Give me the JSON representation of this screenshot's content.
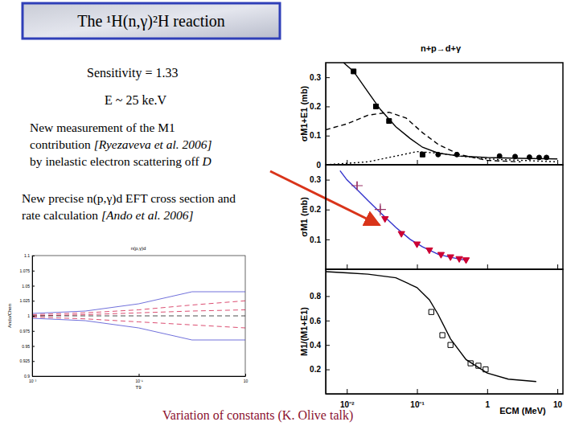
{
  "slide": {
    "title": "The ¹H(n,γ)²H reaction",
    "notes": [
      {
        "lines": [
          [
            "Sensitivity = 1.33"
          ]
        ]
      },
      {
        "lines": [
          [
            "E ~ 25 ke.V"
          ]
        ]
      },
      {
        "lines": [
          [
            "New measurement of the M1"
          ],
          [
            "contribution ",
            "[Ryezaveva et al. 2006]"
          ],
          [
            "by inelastic electron scattering off ",
            "D"
          ]
        ]
      },
      {
        "lines": [
          [
            "New precise n(p,γ)d EFT cross section and"
          ],
          [
            "rate calculation ",
            "[Ando et al. 2006]"
          ]
        ]
      }
    ],
    "footer": "Variation of constants (K. Olive talk)"
  },
  "chart_data": [
    {
      "type": "line",
      "title": "n+p→d+γ",
      "ylabel": "σM1+E1 (mb)",
      "log": "x",
      "tick_labels": "y",
      "xlim": [
        0.005,
        12
      ],
      "ylim": [
        0,
        0.35
      ],
      "xticks": [
        {
          "value": 0.01,
          "label": "10⁻²"
        },
        {
          "value": 0.1,
          "label": "10⁻¹"
        },
        1,
        10
      ],
      "yticks": [
        0,
        0.1,
        0.2,
        0.3
      ],
      "series": [
        {
          "type": "line",
          "line_style": "solid",
          "color": "#000000",
          "x": [
            0.009,
            0.0125,
            0.02,
            0.03,
            0.05,
            0.08,
            0.12,
            0.2,
            0.4,
            1,
            3,
            10
          ],
          "values": [
            0.35,
            0.32,
            0.25,
            0.19,
            0.13,
            0.09,
            0.06,
            0.04,
            0.03,
            0.025,
            0.022,
            0.02
          ]
        },
        {
          "type": "line",
          "line_style": "dashed",
          "color": "#000000",
          "x": [
            0.005,
            0.01,
            0.02,
            0.04,
            0.07,
            0.12,
            0.2,
            0.4,
            1,
            3
          ],
          "values": [
            0.12,
            0.14,
            0.17,
            0.18,
            0.16,
            0.11,
            0.07,
            0.035,
            0.015,
            0.01
          ]
        },
        {
          "type": "line",
          "line_style": "dotted",
          "color": "#000000",
          "x": [
            0.005,
            0.02,
            0.05,
            0.1,
            0.2,
            0.4,
            1,
            10
          ],
          "values": [
            0.0,
            0.01,
            0.03,
            0.045,
            0.04,
            0.03,
            0.02,
            0.01
          ]
        },
        {
          "type": "scatter",
          "marker": "square",
          "color": "#000000",
          "x": [
            0.0125,
            0.026,
            0.04,
            0.12
          ],
          "values": [
            0.32,
            0.2,
            0.15,
            0.035
          ]
        },
        {
          "type": "scatter",
          "marker": "circle",
          "color": "#000000",
          "x": [
            0.2,
            0.37,
            1.5,
            2.5,
            4,
            5.5,
            7
          ],
          "values": [
            0.035,
            0.035,
            0.03,
            0.028,
            0.026,
            0.025,
            0.025
          ]
        }
      ]
    },
    {
      "type": "line",
      "ylabel": "σM1 (mb)",
      "log": "x",
      "tick_labels": "y",
      "xlim": [
        0.005,
        12
      ],
      "ylim": [
        0,
        0.35
      ],
      "xticks": [
        {
          "value": 0.01,
          "label": "10⁻²"
        },
        {
          "value": 0.1,
          "label": "10⁻¹"
        },
        1,
        10
      ],
      "yticks": [
        0.1,
        0.2,
        0.3
      ],
      "series": [
        {
          "type": "line",
          "line_style": "solid",
          "color": "#3333cc",
          "x": [
            0.008,
            0.01,
            0.015,
            0.02,
            0.03,
            0.05,
            0.08,
            0.12,
            0.2,
            0.3,
            0.5
          ],
          "values": [
            0.33,
            0.3,
            0.26,
            0.23,
            0.19,
            0.14,
            0.1,
            0.075,
            0.05,
            0.04,
            0.03
          ]
        },
        {
          "type": "scatter",
          "marker": "plus",
          "color": "#993366",
          "x": [
            0.014,
            0.03
          ],
          "values": [
            0.28,
            0.2
          ],
          "error": [
            0.015,
            0.02
          ]
        },
        {
          "type": "scatter",
          "marker": "triangle-down",
          "color": "#cc0033",
          "x": [
            0.035,
            0.06,
            0.1,
            0.15,
            0.22,
            0.3,
            0.4,
            0.5
          ],
          "values": [
            0.17,
            0.12,
            0.085,
            0.065,
            0.05,
            0.042,
            0.036,
            0.032
          ]
        }
      ]
    },
    {
      "type": "line",
      "ylabel": "M1/(M1+E1)",
      "xlabel": "ECM (MeV)",
      "log": "x",
      "xlim": [
        0.005,
        12
      ],
      "ylim": [
        0,
        1.02
      ],
      "xticks": [
        {
          "value": 0.01,
          "label": "10⁻²"
        },
        {
          "value": 0.1,
          "label": "10⁻¹"
        },
        1,
        10
      ],
      "yticks": [
        0.2,
        0.4,
        0.6,
        0.8
      ],
      "series": [
        {
          "type": "line",
          "line_style": "solid",
          "color": "#000000",
          "x": [
            0.005,
            0.01,
            0.02,
            0.05,
            0.1,
            0.15,
            0.2,
            0.3,
            0.5,
            1,
            2,
            5
          ],
          "values": [
            1,
            0.99,
            0.98,
            0.95,
            0.87,
            0.77,
            0.65,
            0.45,
            0.28,
            0.17,
            0.12,
            0.1
          ]
        },
        {
          "type": "scatter",
          "marker": "square-open",
          "color": "#000000",
          "x": [
            0.16,
            0.23,
            0.3,
            0.58,
            0.75,
            0.95
          ],
          "values": [
            0.67,
            0.48,
            0.4,
            0.25,
            0.23,
            0.2
          ]
        }
      ]
    },
    {
      "type": "line",
      "title": "n(p,γ)d",
      "ylabel": "Ando/Chen",
      "xlabel": "T9",
      "log": "x",
      "xlim": [
        0.001,
        10
      ],
      "ylim": [
        0.9,
        1.1
      ],
      "xticks": [
        {
          "value": 0.001,
          "label": "10⁻³"
        },
        {
          "value": 0.1,
          "label": "10⁻¹"
        },
        10
      ],
      "yticks": [
        0.9,
        0.925,
        0.95,
        0.975,
        1,
        1.025,
        1.05,
        1.075,
        1.1
      ],
      "series": [
        {
          "type": "line",
          "line_style": "solid",
          "color": "#3333cc",
          "x": [
            0.001,
            0.01,
            0.1,
            1,
            10
          ],
          "values": [
            1.004,
            1.008,
            1.02,
            1.04,
            1.04
          ]
        },
        {
          "type": "line",
          "line_style": "solid",
          "color": "#3333cc",
          "x": [
            0.001,
            0.01,
            0.1,
            1,
            10
          ],
          "values": [
            0.996,
            0.992,
            0.98,
            0.96,
            0.96
          ]
        },
        {
          "type": "line",
          "line_style": "dashed",
          "color": "#cc0033",
          "x": [
            0.001,
            0.01,
            0.1,
            1,
            10
          ],
          "values": [
            1.002,
            1.005,
            1.01,
            1.018,
            1.025
          ]
        },
        {
          "type": "line",
          "line_style": "dashed",
          "color": "#cc0033",
          "x": [
            0.001,
            0.01,
            0.1,
            1,
            10
          ],
          "values": [
            0.998,
            0.995,
            0.99,
            0.985,
            0.98
          ]
        },
        {
          "type": "line",
          "line_style": "dashed",
          "color": "#cc0033",
          "x": [
            0.001,
            0.01,
            0.1,
            1,
            10
          ],
          "values": [
            1,
            1.002,
            1.005,
            1.008,
            1.01
          ]
        },
        {
          "type": "line",
          "line_style": "dashed",
          "color": "#000000",
          "x": [
            0.001,
            0.01,
            0.1,
            1,
            10
          ],
          "values": [
            1,
            1,
            1,
            1,
            1
          ]
        }
      ]
    }
  ]
}
